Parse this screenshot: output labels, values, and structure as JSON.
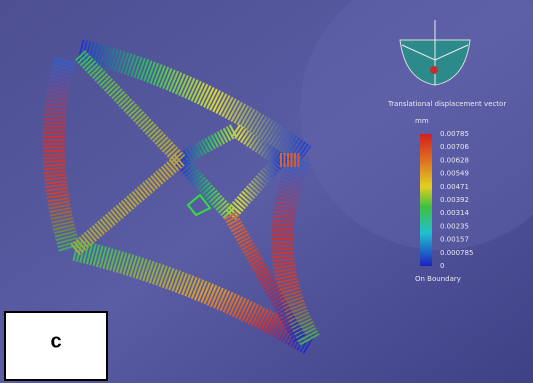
{
  "legend": {
    "title": "Translational displacement vector",
    "unit": "mm",
    "values": [
      "0.00785",
      "0.00706",
      "0.00628",
      "0.00549",
      "0.00471",
      "0.00392",
      "0.00314",
      "0.00235",
      "0.00157",
      "0.000785",
      "0"
    ],
    "footer": "On Boundary"
  },
  "panel_label": "c"
}
